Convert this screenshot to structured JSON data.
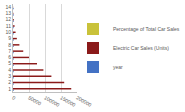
{
  "chart_data": {
    "type": "bar",
    "orientation": "horizontal",
    "grid": true,
    "legend": "right",
    "categories": [
      "1",
      "2",
      "3",
      "4",
      "5",
      "6",
      "7",
      "8",
      "9",
      "10",
      "11",
      "12",
      "13",
      "14"
    ],
    "series": [
      {
        "name": "year",
        "color": "#4472c4",
        "values": [
          2023,
          2022,
          2021,
          2020,
          2019,
          2018,
          2017,
          2016,
          2015,
          2014,
          2013,
          2012,
          2011,
          2010
        ]
      },
      {
        "name": "Electric Car Sales (Units)",
        "color": "#8b1a1a",
        "values": [
          182000,
          160000,
          120000,
          95000,
          75000,
          50000,
          32000,
          20000,
          12000,
          8000,
          5000,
          2500,
          1200,
          500
        ]
      },
      {
        "name": "Percentage of Total Car Sales",
        "color": "#c9c23a",
        "values": [
          18,
          15,
          12,
          9,
          7,
          5,
          3,
          2,
          1.2,
          0.8,
          0.5,
          0.3,
          0.1,
          0.05
        ]
      }
    ],
    "xlim": [
      0,
      200000
    ],
    "xticks": [
      0,
      50000,
      100000,
      150000,
      200000
    ]
  }
}
